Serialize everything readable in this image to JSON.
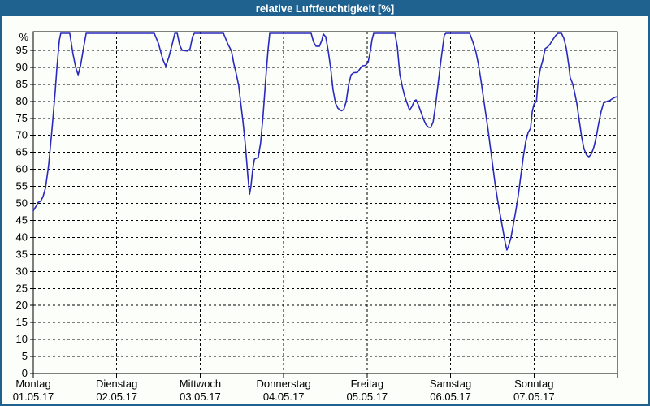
{
  "window": {
    "title": "relative Luftfeuchtigkeit [%]"
  },
  "colors": {
    "titlebar_blue": "#1f618f",
    "border_blue": "#1f618f",
    "panel_background": "#fcfefa",
    "grid_black": "#000000",
    "series_blue": "#2929bd",
    "label_black": "#000000"
  },
  "chart_data": {
    "type": "line",
    "title": "relative Luftfeuchtigkeit [%]",
    "unit_label": "%",
    "ylim": [
      0,
      100
    ],
    "y_ticks": [
      0,
      5,
      10,
      15,
      20,
      25,
      30,
      35,
      40,
      45,
      50,
      55,
      60,
      65,
      70,
      75,
      80,
      85,
      90,
      95
    ],
    "x_range_hours": [
      0,
      168
    ],
    "x_day_boundaries_hours": [
      0,
      24,
      48,
      72,
      96,
      120,
      144,
      168
    ],
    "grid": "dashed",
    "legend_position": "none",
    "x_days": [
      {
        "name": "Montag",
        "date": "01.05.17"
      },
      {
        "name": "Dienstag",
        "date": "02.05.17"
      },
      {
        "name": "Mittwoch",
        "date": "03.05.17"
      },
      {
        "name": "Donnerstag",
        "date": "04.05.17"
      },
      {
        "name": "Freitag",
        "date": "05.05.17"
      },
      {
        "name": "Samstag",
        "date": "06.05.17"
      },
      {
        "name": "Sonntag",
        "date": "07.05.17"
      }
    ],
    "series": [
      {
        "name": "relative Luftfeuchtigkeit [%]",
        "color": "#2929bd",
        "points_hours_percent": [
          [
            0,
            47.8
          ],
          [
            0.7,
            49
          ],
          [
            1.4,
            50.3
          ],
          [
            2.1,
            50.6
          ],
          [
            2.8,
            52
          ],
          [
            3.5,
            54.5
          ],
          [
            4.4,
            61
          ],
          [
            5.4,
            72
          ],
          [
            6.3,
            83
          ],
          [
            6.8,
            90
          ],
          [
            7.5,
            98
          ],
          [
            7.9,
            100
          ],
          [
            10.5,
            100
          ],
          [
            11.4,
            94
          ],
          [
            12.2,
            90
          ],
          [
            12.9,
            87.8
          ],
          [
            13.6,
            90.5
          ],
          [
            14.5,
            96
          ],
          [
            15.2,
            100
          ],
          [
            34.8,
            100
          ],
          [
            36,
            97
          ],
          [
            37.2,
            92.5
          ],
          [
            38.1,
            90.3
          ],
          [
            39,
            93
          ],
          [
            40,
            97
          ],
          [
            40.7,
            100
          ],
          [
            41.4,
            100
          ],
          [
            42.1,
            96.5
          ],
          [
            42.8,
            95
          ],
          [
            44.4,
            94.8
          ],
          [
            45.1,
            95.5
          ],
          [
            45.8,
            99
          ],
          [
            46.3,
            100
          ],
          [
            54.7,
            100
          ],
          [
            55.9,
            97
          ],
          [
            57,
            94.8
          ],
          [
            57.7,
            91
          ],
          [
            58.4,
            88
          ],
          [
            59.1,
            84.5
          ],
          [
            59.6,
            80
          ],
          [
            60.3,
            74
          ],
          [
            61,
            67
          ],
          [
            61.7,
            58
          ],
          [
            62.2,
            52.7
          ],
          [
            62.6,
            55
          ],
          [
            63.1,
            60
          ],
          [
            63.6,
            63
          ],
          [
            64.7,
            63.5
          ],
          [
            65.4,
            68
          ],
          [
            66.1,
            76
          ],
          [
            66.8,
            86
          ],
          [
            67.5,
            95
          ],
          [
            68,
            100
          ],
          [
            79.9,
            100
          ],
          [
            80.6,
            97.5
          ],
          [
            81.3,
            96.2
          ],
          [
            82.3,
            96.2
          ],
          [
            83,
            98
          ],
          [
            83.4,
            99.8
          ],
          [
            84.1,
            99
          ],
          [
            84.8,
            95
          ],
          [
            85.5,
            90
          ],
          [
            86.2,
            83.5
          ],
          [
            86.9,
            79.5
          ],
          [
            87.6,
            78
          ],
          [
            88.6,
            77.2
          ],
          [
            89.3,
            77.6
          ],
          [
            90,
            80
          ],
          [
            90.7,
            85
          ],
          [
            91.4,
            87.8
          ],
          [
            92.1,
            88.4
          ],
          [
            93.2,
            88.5
          ],
          [
            93.9,
            89.5
          ],
          [
            94.6,
            90.4
          ],
          [
            95.6,
            90.6
          ],
          [
            96.3,
            91.5
          ],
          [
            97,
            95
          ],
          [
            97.4,
            98
          ],
          [
            97.9,
            100
          ],
          [
            104,
            100
          ],
          [
            104.7,
            96
          ],
          [
            105.4,
            88
          ],
          [
            106.1,
            84.5
          ],
          [
            106.8,
            81.5
          ],
          [
            107.5,
            79.5
          ],
          [
            108.2,
            77.4
          ],
          [
            108.9,
            78.5
          ],
          [
            109.6,
            80.2
          ],
          [
            110.1,
            80.4
          ],
          [
            110.8,
            78.8
          ],
          [
            111.5,
            76.8
          ],
          [
            112.2,
            74.8
          ],
          [
            112.9,
            73.2
          ],
          [
            113.6,
            72.4
          ],
          [
            114.3,
            72.3
          ],
          [
            115,
            74
          ],
          [
            115.7,
            79
          ],
          [
            116.4,
            85
          ],
          [
            117.1,
            91
          ],
          [
            117.8,
            96.5
          ],
          [
            118.2,
            99.5
          ],
          [
            118.7,
            100
          ],
          [
            125.5,
            100
          ],
          [
            126.4,
            97.5
          ],
          [
            127.3,
            94.5
          ],
          [
            128,
            91
          ],
          [
            128.7,
            86.5
          ],
          [
            129.4,
            81.5
          ],
          [
            130.1,
            76.5
          ],
          [
            130.8,
            71.5
          ],
          [
            131.5,
            66
          ],
          [
            132.2,
            60.5
          ],
          [
            132.9,
            55
          ],
          [
            133.6,
            50.5
          ],
          [
            134.3,
            46.5
          ],
          [
            135,
            42.5
          ],
          [
            135.7,
            38.5
          ],
          [
            136.2,
            36.3
          ],
          [
            136.7,
            37.5
          ],
          [
            137.4,
            40
          ],
          [
            138.1,
            44
          ],
          [
            138.8,
            48
          ],
          [
            139.5,
            52.5
          ],
          [
            140.2,
            58
          ],
          [
            140.9,
            63.5
          ],
          [
            141.6,
            68
          ],
          [
            142.3,
            70.8
          ],
          [
            143,
            72
          ],
          [
            143.5,
            77
          ],
          [
            144,
            79.2
          ],
          [
            144.7,
            80
          ],
          [
            145.1,
            85
          ],
          [
            145.8,
            89.5
          ],
          [
            146.5,
            92
          ],
          [
            147.2,
            95.5
          ],
          [
            147.9,
            96
          ],
          [
            148.6,
            96.8
          ],
          [
            149.3,
            98
          ],
          [
            150.2,
            99.3
          ],
          [
            150.9,
            100
          ],
          [
            151.9,
            100
          ],
          [
            152.6,
            98.5
          ],
          [
            153.3,
            95.5
          ],
          [
            154,
            90.5
          ],
          [
            154.4,
            87
          ],
          [
            155.1,
            85.2
          ],
          [
            155.6,
            83
          ],
          [
            156.3,
            79.5
          ],
          [
            157,
            74.5
          ],
          [
            157.7,
            69.5
          ],
          [
            158.4,
            66
          ],
          [
            159.1,
            64.2
          ],
          [
            159.8,
            63.7
          ],
          [
            160.5,
            64.5
          ],
          [
            161.2,
            66.5
          ],
          [
            161.9,
            69.5
          ],
          [
            162.6,
            73.5
          ],
          [
            163.3,
            77
          ],
          [
            164,
            79.5
          ],
          [
            165,
            80
          ],
          [
            165.9,
            80.3
          ],
          [
            166.6,
            80.8
          ],
          [
            167.3,
            81.2
          ],
          [
            168,
            81.4
          ]
        ]
      }
    ]
  }
}
